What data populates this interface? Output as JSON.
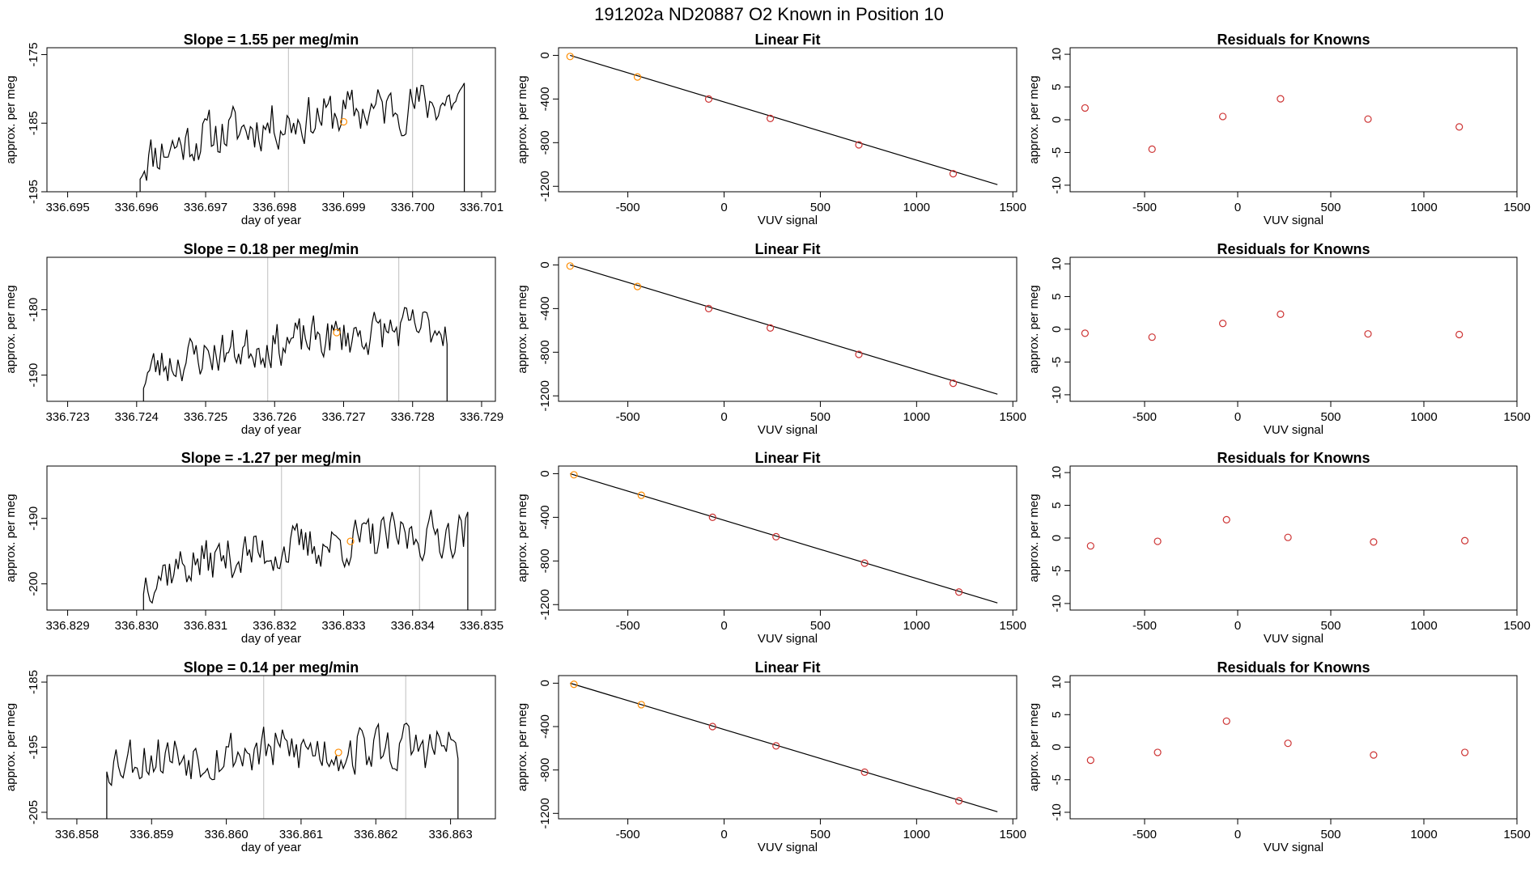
{
  "figure_title": "191202a      ND20887    O2 Known in Position  10",
  "colors": {
    "line": "#000000",
    "marker": "#ff8c00",
    "residual": "#cd3333",
    "vline": "#bebebe",
    "fit": "#000000"
  },
  "chart_data": [
    {
      "panel": "time-series",
      "type": "line",
      "title": "Slope =  1.55  per meg/min",
      "xlabel": "day of year",
      "ylabel": "approx. per meg",
      "xlim": [
        336.6947,
        336.7012
      ],
      "ylim": [
        -195,
        -174
      ],
      "xticks": [
        "336.695",
        "336.696",
        "336.697",
        "336.698",
        "336.699",
        "336.700",
        "336.701"
      ],
      "yticks": [
        "-175",
        "-185",
        "-195"
      ],
      "vlines": [
        336.6982,
        336.7
      ],
      "marker": {
        "x": 336.699,
        "y": -184.8
      },
      "t_start": 336.69605,
      "t_end": 336.70075,
      "y_start": -191.5,
      "y_end": -181.5,
      "noise": 3.2,
      "seed": 11
    },
    {
      "panel": "linear-fit",
      "type": "scatter",
      "title": "Linear Fit",
      "xlabel": "VUV signal",
      "ylabel": "approx. per meg",
      "xlim": [
        -860,
        1520
      ],
      "ylim": [
        -1250,
        70
      ],
      "xticks": [
        "-500",
        "0",
        "500",
        "1000",
        "1500"
      ],
      "yticks": [
        "0",
        "-400",
        "-800",
        "-1200"
      ],
      "points": [
        [
          -800,
          -10
        ],
        [
          -450,
          -198
        ],
        [
          -80,
          -400
        ],
        [
          240,
          -578
        ],
        [
          700,
          -820
        ],
        [
          1190,
          -1085
        ]
      ],
      "highlight_index": 1,
      "fit_line": [
        [
          -800,
          0
        ],
        [
          1420,
          -1185
        ]
      ]
    },
    {
      "panel": "residuals",
      "type": "scatter",
      "title": "Residuals for Knowns",
      "xlabel": "VUV signal",
      "ylabel": "approx. per meg",
      "xlim": [
        -900,
        1500
      ],
      "ylim": [
        -11,
        11
      ],
      "xticks": [
        "-500",
        "0",
        "500",
        "1000",
        "1500"
      ],
      "yticks": [
        "10",
        "5",
        "0",
        "-5",
        "-10"
      ],
      "points": [
        [
          -820,
          1.8
        ],
        [
          -460,
          -4.5
        ],
        [
          -80,
          0.5
        ],
        [
          230,
          3.2
        ],
        [
          700,
          0.1
        ],
        [
          1190,
          -1.1
        ]
      ]
    },
    {
      "panel": "time-series",
      "type": "line",
      "title": "Slope =  0.18  per meg/min",
      "xlabel": "day of year",
      "ylabel": "approx. per meg",
      "xlim": [
        336.7227,
        336.7292
      ],
      "ylim": [
        -194,
        -172
      ],
      "xticks": [
        "336.723",
        "336.724",
        "336.725",
        "336.726",
        "336.727",
        "336.728",
        "336.729"
      ],
      "yticks": [
        "-180",
        "-190"
      ],
      "vlines": [
        336.7259,
        336.7278
      ],
      "marker": {
        "x": 336.7269,
        "y": -183.5
      },
      "t_start": 336.7241,
      "t_end": 336.7285,
      "y_start": -190.5,
      "y_end": -182.5,
      "noise": 3.0,
      "seed": 23
    },
    {
      "panel": "linear-fit",
      "type": "scatter",
      "title": "Linear Fit",
      "xlabel": "VUV signal",
      "ylabel": "approx. per meg",
      "xlim": [
        -860,
        1520
      ],
      "ylim": [
        -1250,
        70
      ],
      "xticks": [
        "-500",
        "0",
        "500",
        "1000",
        "1500"
      ],
      "yticks": [
        "0",
        "-400",
        "-800",
        "-1200"
      ],
      "points": [
        [
          -800,
          -10
        ],
        [
          -450,
          -198
        ],
        [
          -80,
          -400
        ],
        [
          240,
          -578
        ],
        [
          700,
          -820
        ],
        [
          1190,
          -1085
        ]
      ],
      "highlight_index": 1,
      "fit_line": [
        [
          -800,
          0
        ],
        [
          1420,
          -1185
        ]
      ]
    },
    {
      "panel": "residuals",
      "type": "scatter",
      "title": "Residuals for Knowns",
      "xlabel": "VUV signal",
      "ylabel": "approx. per meg",
      "xlim": [
        -900,
        1500
      ],
      "ylim": [
        -11,
        11
      ],
      "xticks": [
        "-500",
        "0",
        "500",
        "1000",
        "1500"
      ],
      "yticks": [
        "10",
        "5",
        "0",
        "-5",
        "-10"
      ],
      "points": [
        [
          -820,
          -0.6
        ],
        [
          -460,
          -1.2
        ],
        [
          -80,
          0.9
        ],
        [
          230,
          2.3
        ],
        [
          700,
          -0.7
        ],
        [
          1190,
          -0.8
        ]
      ]
    },
    {
      "panel": "time-series",
      "type": "line",
      "title": "Slope =  -1.27  per meg/min",
      "xlabel": "day of year",
      "ylabel": "approx. per meg",
      "xlim": [
        336.8287,
        336.8352
      ],
      "ylim": [
        -204,
        -182
      ],
      "xticks": [
        "336.829",
        "336.830",
        "336.831",
        "336.832",
        "336.833",
        "336.834",
        "336.835"
      ],
      "yticks": [
        "-190",
        "-200"
      ],
      "vlines": [
        336.8321,
        336.8341
      ],
      "marker": {
        "x": 336.8331,
        "y": -193.5
      },
      "t_start": 336.8301,
      "t_end": 336.8348,
      "y_start": -200,
      "y_end": -192,
      "noise": 3.2,
      "seed": 37
    },
    {
      "panel": "linear-fit",
      "type": "scatter",
      "title": "Linear Fit",
      "xlabel": "VUV signal",
      "ylabel": "approx. per meg",
      "xlim": [
        -860,
        1520
      ],
      "ylim": [
        -1250,
        70
      ],
      "xticks": [
        "-500",
        "0",
        "500",
        "1000",
        "1500"
      ],
      "yticks": [
        "0",
        "-400",
        "-800",
        "-1200"
      ],
      "points": [
        [
          -780,
          -10
        ],
        [
          -430,
          -198
        ],
        [
          -60,
          -400
        ],
        [
          270,
          -578
        ],
        [
          730,
          -820
        ],
        [
          1220,
          -1085
        ]
      ],
      "highlight_index": 1,
      "fit_line": [
        [
          -800,
          0
        ],
        [
          1420,
          -1185
        ]
      ]
    },
    {
      "panel": "residuals",
      "type": "scatter",
      "title": "Residuals for Knowns",
      "xlabel": "VUV signal",
      "ylabel": "approx. per meg",
      "xlim": [
        -900,
        1500
      ],
      "ylim": [
        -11,
        11
      ],
      "xticks": [
        "-500",
        "0",
        "500",
        "1000",
        "1500"
      ],
      "yticks": [
        "10",
        "5",
        "0",
        "-5",
        "-10"
      ],
      "points": [
        [
          -790,
          -1.2
        ],
        [
          -430,
          -0.5
        ],
        [
          -60,
          2.8
        ],
        [
          270,
          0.1
        ],
        [
          730,
          -0.6
        ],
        [
          1220,
          -0.4
        ]
      ]
    },
    {
      "panel": "time-series",
      "type": "line",
      "title": "Slope =  0.14  per meg/min",
      "xlabel": "day of year",
      "ylabel": "approx. per meg",
      "xlim": [
        336.8576,
        336.8636
      ],
      "ylim": [
        -206,
        -184
      ],
      "xticks": [
        "336.858",
        "336.859",
        "336.860",
        "336.861",
        "336.862",
        "336.863"
      ],
      "yticks": [
        "-185",
        "-195",
        "-205"
      ],
      "vlines": [
        336.8605,
        336.8624
      ],
      "marker": {
        "x": 336.8615,
        "y": -195.8
      },
      "t_start": 336.8584,
      "t_end": 336.8631,
      "y_start": -197,
      "y_end": -195,
      "noise": 3.6,
      "seed": 53
    },
    {
      "panel": "linear-fit",
      "type": "scatter",
      "title": "Linear Fit",
      "xlabel": "VUV signal",
      "ylabel": "approx. per meg",
      "xlim": [
        -860,
        1520
      ],
      "ylim": [
        -1250,
        70
      ],
      "xticks": [
        "-500",
        "0",
        "500",
        "1000",
        "1500"
      ],
      "yticks": [
        "0",
        "-400",
        "-800",
        "-1200"
      ],
      "points": [
        [
          -780,
          -10
        ],
        [
          -430,
          -198
        ],
        [
          -60,
          -400
        ],
        [
          270,
          -578
        ],
        [
          730,
          -820
        ],
        [
          1220,
          -1085
        ]
      ],
      "highlight_index": 1,
      "fit_line": [
        [
          -800,
          0
        ],
        [
          1420,
          -1185
        ]
      ]
    },
    {
      "panel": "residuals",
      "type": "scatter",
      "title": "Residuals for Knowns",
      "xlabel": "VUV signal",
      "ylabel": "approx. per meg",
      "xlim": [
        -900,
        1500
      ],
      "ylim": [
        -11,
        11
      ],
      "xticks": [
        "-500",
        "0",
        "500",
        "1000",
        "1500"
      ],
      "yticks": [
        "10",
        "5",
        "0",
        "-5",
        "-10"
      ],
      "points": [
        [
          -790,
          -2.0
        ],
        [
          -430,
          -0.8
        ],
        [
          -60,
          4.0
        ],
        [
          270,
          0.6
        ],
        [
          730,
          -1.2
        ],
        [
          1220,
          -0.8
        ]
      ]
    }
  ]
}
